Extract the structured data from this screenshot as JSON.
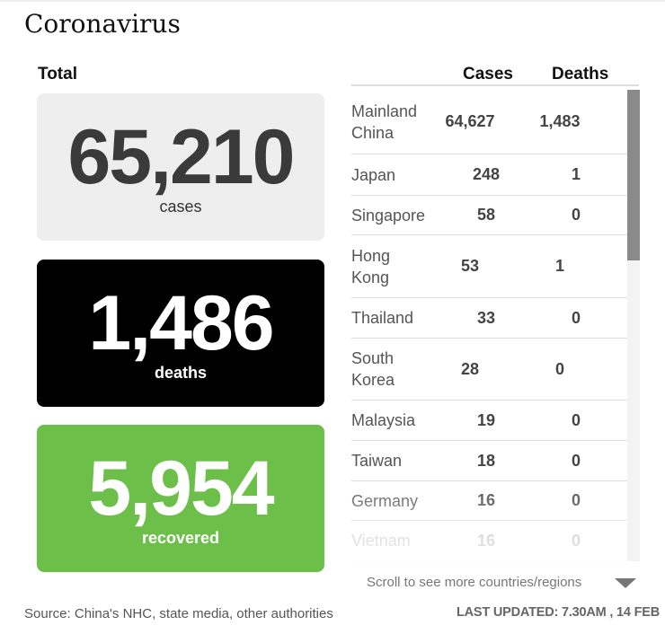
{
  "title": "Coronavirus",
  "total_label": "Total",
  "cases": {
    "value": "65,210",
    "label": "cases"
  },
  "deaths": {
    "value": "1,486",
    "label": "deaths"
  },
  "recovered": {
    "value": "5,954",
    "label": "recovered"
  },
  "colors": {
    "cases_bg": "#eeeeee",
    "deaths_bg": "#000000",
    "recovered_bg": "#6cc04a"
  },
  "table": {
    "headers": {
      "cases": "Cases",
      "deaths": "Deaths"
    },
    "rows": [
      {
        "country": "Mainland China",
        "cases": "64,627",
        "deaths": "1,483"
      },
      {
        "country": "Japan",
        "cases": "248",
        "deaths": "1"
      },
      {
        "country": "Singapore",
        "cases": "58",
        "deaths": "0"
      },
      {
        "country": "Hong Kong",
        "cases": "53",
        "deaths": "1"
      },
      {
        "country": "Thailand",
        "cases": "33",
        "deaths": "0"
      },
      {
        "country": "South Korea",
        "cases": "28",
        "deaths": "0"
      },
      {
        "country": "Malaysia",
        "cases": "19",
        "deaths": "0"
      },
      {
        "country": "Taiwan",
        "cases": "18",
        "deaths": "0"
      },
      {
        "country": "Germany",
        "cases": "16",
        "deaths": "0"
      },
      {
        "country": "Vietnam",
        "cases": "16",
        "deaths": "0"
      }
    ]
  },
  "scroll_hint": "Scroll to see more countries/regions",
  "source": "Source: China's NHC, state media, other authorities",
  "last_updated": "LAST UPDATED: 7.30AM , 14 FEB"
}
